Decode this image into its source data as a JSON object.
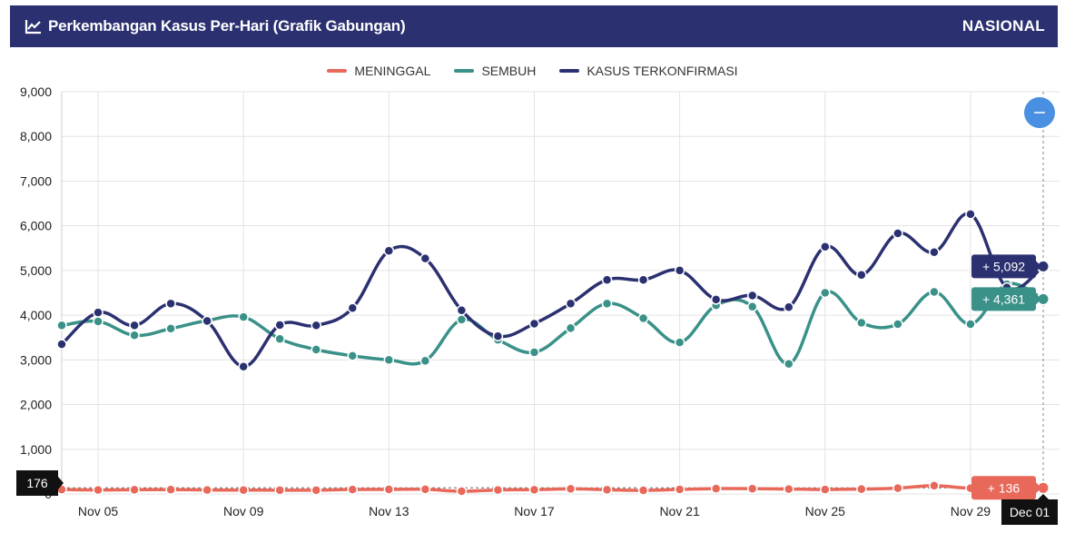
{
  "header": {
    "title": "Perkembangan Kasus Per-Hari (Grafik Gabungan)",
    "region": "NASIONAL",
    "icon": "line-chart-icon"
  },
  "legend": [
    {
      "label": "MENINGGAL",
      "color": "#e8685a"
    },
    {
      "label": "SEMBUH",
      "color": "#3a9188"
    },
    {
      "label": "KASUS TERKONFIRMASI",
      "color": "#2b3170"
    }
  ],
  "zoom_button": {
    "icon": "minus-icon",
    "color": "#4a90e2"
  },
  "chart_data": {
    "type": "line",
    "x": [
      "Nov 04",
      "Nov 05",
      "Nov 06",
      "Nov 07",
      "Nov 08",
      "Nov 09",
      "Nov 10",
      "Nov 11",
      "Nov 12",
      "Nov 13",
      "Nov 14",
      "Nov 15",
      "Nov 16",
      "Nov 17",
      "Nov 18",
      "Nov 19",
      "Nov 20",
      "Nov 21",
      "Nov 22",
      "Nov 23",
      "Nov 24",
      "Nov 25",
      "Nov 26",
      "Nov 27",
      "Nov 28",
      "Nov 29",
      "Nov 30",
      "Dec 01"
    ],
    "x_tick_labels": [
      "Nov 05",
      "Nov 09",
      "Nov 13",
      "Nov 17",
      "Nov 21",
      "Nov 25",
      "Nov 29"
    ],
    "ylim": [
      0,
      9000
    ],
    "y_ticks": [
      "0",
      "1,000",
      "2,000",
      "3,000",
      "4,000",
      "5,000",
      "6,000",
      "7,000",
      "8,000",
      "9,000"
    ],
    "grid": true,
    "legend_position": "top-center",
    "series": [
      {
        "name": "MENINGGAL",
        "color": "#e8685a",
        "values": [
          100,
          90,
          95,
          97,
          90,
          86,
          85,
          85,
          100,
          101,
          104,
          60,
          90,
          95,
          115,
          95,
          80,
          101,
          120,
          118,
          110,
          100,
          108,
          130,
          185,
          130,
          169,
          136
        ]
      },
      {
        "name": "SEMBUH",
        "color": "#3a9188",
        "values": [
          3770,
          3860,
          3550,
          3700,
          3880,
          3960,
          3470,
          3230,
          3090,
          3000,
          2980,
          3900,
          3450,
          3170,
          3710,
          4260,
          3930,
          3390,
          4220,
          4190,
          2910,
          4500,
          3830,
          3800,
          4520,
          3800,
          4690,
          4361
        ]
      },
      {
        "name": "KASUS TERKONFIRMASI",
        "color": "#2b3170",
        "values": [
          3350,
          4060,
          3770,
          4260,
          3870,
          2850,
          3780,
          3770,
          4160,
          5440,
          5270,
          4110,
          3530,
          3810,
          4260,
          4790,
          4790,
          5000,
          4350,
          4440,
          4180,
          5530,
          4900,
          5830,
          5410,
          6260,
          4620,
          5092
        ]
      }
    ],
    "hover": {
      "date_label": "Dec 01",
      "left_value_label": "176",
      "tooltips": [
        {
          "series": "KASUS TERKONFIRMASI",
          "text": "+ 5,092",
          "color": "#2b3170"
        },
        {
          "series": "SEMBUH",
          "text": "+ 4,361",
          "color": "#3a9188"
        },
        {
          "series": "MENINGGAL",
          "text": "+ 136",
          "color": "#e8685a"
        }
      ]
    }
  }
}
